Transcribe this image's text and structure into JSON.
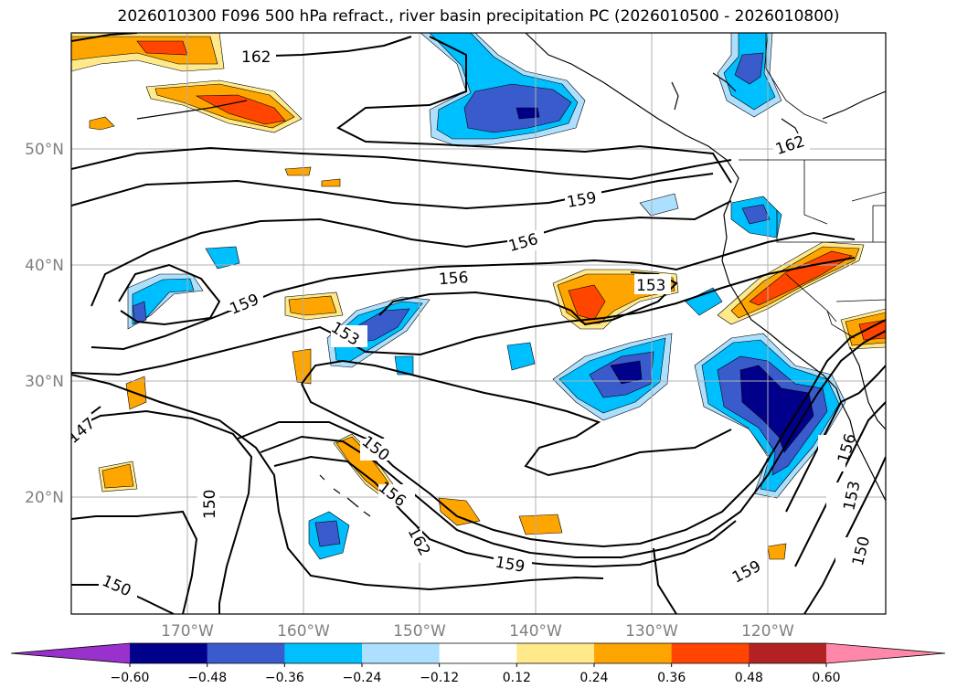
{
  "title": "2026010300 F096 500 hPa refract., river basin precipitation PC (2026010500 - 2026010800)",
  "map": {
    "lat_labels": [
      "50°N",
      "40°N",
      "30°N",
      "20°N"
    ],
    "lon_labels": [
      "170°W",
      "160°W",
      "150°W",
      "140°W",
      "130°W",
      "120°W"
    ],
    "contour_labels": [
      "162",
      "162",
      "159",
      "156",
      "156",
      "159",
      "153",
      "153",
      "150",
      "150",
      "156",
      "162",
      "159",
      "159",
      "156",
      "153",
      "150",
      "147"
    ]
  },
  "colorbar": {
    "colors": [
      "#9932CC",
      "#00008B",
      "#3A5BCC",
      "#00BFFF",
      "#ADE0FF",
      "#FFFFFF",
      "#FFE98A",
      "#FFA500",
      "#FF4500",
      "#B22222",
      "#FF88AA"
    ],
    "tick_labels": [
      "−0.60",
      "−0.48",
      "−0.36",
      "−0.24",
      "−0.12",
      "0.12",
      "0.24",
      "0.36",
      "0.48",
      "0.60"
    ]
  }
}
